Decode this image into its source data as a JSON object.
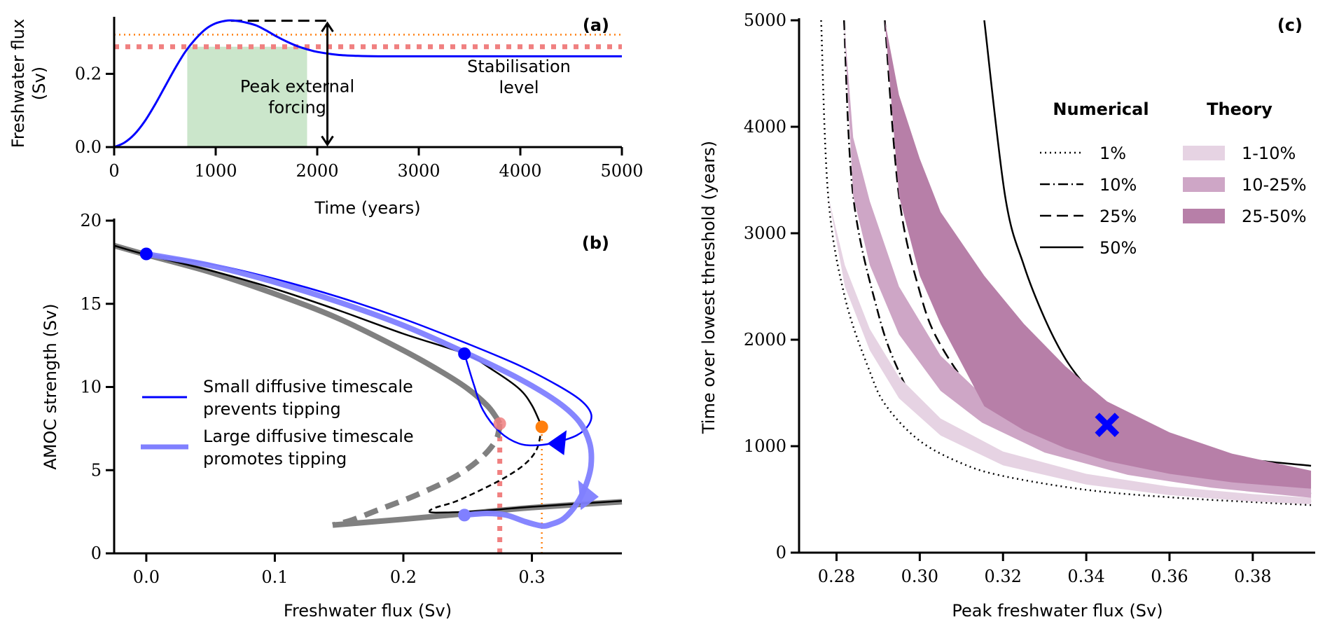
{
  "chart_data": [
    {
      "id": "a",
      "type": "line",
      "panel_label": "(a)",
      "xlabel": "Time (years)",
      "ylabel_lines": [
        "Freshwater flux",
        "(Sv)"
      ],
      "xlim": [
        0,
        5000
      ],
      "ylim": [
        0,
        0.35
      ],
      "xticks": [
        0,
        1000,
        2000,
        3000,
        4000,
        5000
      ],
      "xtick_labels": [
        "0",
        "1000",
        "2000",
        "3000",
        "4000",
        "5000"
      ],
      "yticks": [
        0.0,
        0.2
      ],
      "ytick_labels": [
        "0.0",
        "0.2"
      ],
      "grid": false,
      "series": [
        {
          "name": "freshwater forcing",
          "color": "#0000ff",
          "x": [
            0,
            100,
            200,
            300,
            400,
            500,
            600,
            700,
            800,
            900,
            1000,
            1100,
            1150,
            1200,
            1300,
            1400,
            1500,
            1600,
            1700,
            1800,
            1900,
            2000,
            2200,
            2400,
            2600,
            3000,
            4000,
            5000
          ],
          "y": [
            0,
            0.012,
            0.035,
            0.07,
            0.115,
            0.165,
            0.215,
            0.26,
            0.295,
            0.322,
            0.338,
            0.345,
            0.346,
            0.345,
            0.34,
            0.332,
            0.318,
            0.302,
            0.288,
            0.276,
            0.267,
            0.26,
            0.252,
            0.249,
            0.248,
            0.248,
            0.248,
            0.248
          ]
        }
      ],
      "hlines": [
        {
          "name": "orange threshold",
          "y": 0.307,
          "color": "#ff7f0e",
          "style": "dotted"
        },
        {
          "name": "red threshold",
          "y": 0.274,
          "color": "#f08080",
          "style": "thick-dotted"
        },
        {
          "name": "peak level",
          "y": 0.345,
          "x_from": 1150,
          "x_to": 2100,
          "color": "#000000",
          "style": "dashed"
        },
        {
          "name": "zero level",
          "y": 0.0,
          "x_from": 0,
          "x_to": 2100,
          "color": "#000000",
          "style": "dashed"
        }
      ],
      "shaded_region": {
        "x_from": 720,
        "x_to": 1900,
        "y_from": 0,
        "y_to": 0.274,
        "color": "#cbe6cb"
      },
      "arrow": {
        "x": 2100,
        "y_from": 0.003,
        "y_to": 0.342
      },
      "annotations": [
        {
          "text_lines": [
            "Peak external",
            "forcing"
          ],
          "x": 2700,
          "y": 0.15
        },
        {
          "text_lines": [
            "Stabilisation",
            "level"
          ],
          "x": 4400,
          "y": 0.205
        }
      ]
    },
    {
      "id": "b",
      "type": "line",
      "panel_label": "(b)",
      "xlabel": "Freshwater flux (Sv)",
      "ylabel": "AMOC strength (Sv)",
      "xlim": [
        -0.025,
        0.37
      ],
      "ylim": [
        0,
        20
      ],
      "xticks": [
        0.0,
        0.1,
        0.2,
        0.3
      ],
      "xtick_labels": [
        "0.0",
        "0.1",
        "0.2",
        "0.3"
      ],
      "yticks": [
        0,
        5,
        10,
        15,
        20
      ],
      "ytick_labels": [
        "0",
        "5",
        "10",
        "15",
        "20"
      ],
      "grid": false,
      "legend": {
        "position": "center-left",
        "entries": [
          {
            "label_lines": [
              "Small diffusive timescale",
              "prevents tipping"
            ],
            "color": "#0000ff",
            "style": "thin"
          },
          {
            "label_lines": [
              "Large diffusive timescale",
              "promotes tipping"
            ],
            "color": "#8080ff",
            "style": "thick"
          }
        ]
      },
      "series": [
        {
          "name": "equilibrium (large timescale) stable upper",
          "color": "#808080",
          "style": "thick-solid",
          "x": [
            -0.025,
            0.0,
            0.05,
            0.1,
            0.15,
            0.2,
            0.23,
            0.25,
            0.265,
            0.272,
            0.275
          ],
          "y": [
            18.5,
            17.95,
            16.9,
            15.6,
            14.1,
            12.2,
            10.9,
            9.9,
            8.9,
            8.2,
            7.8
          ]
        },
        {
          "name": "equilibrium (large timescale) unstable",
          "color": "#808080",
          "style": "thick-dashed",
          "x": [
            0.275,
            0.272,
            0.26,
            0.24,
            0.21,
            0.18,
            0.16,
            0.145
          ],
          "y": [
            7.8,
            6.8,
            5.7,
            4.6,
            3.5,
            2.6,
            2.0,
            1.7
          ]
        },
        {
          "name": "equilibrium (large timescale) stable lower",
          "color": "#808080",
          "style": "thick-solid",
          "x": [
            0.145,
            0.2,
            0.25,
            0.3,
            0.37
          ],
          "y": [
            1.7,
            2.05,
            2.4,
            2.75,
            3.1
          ]
        },
        {
          "name": "equilibrium (small timescale) stable upper",
          "color": "#000000",
          "style": "thin-solid",
          "x": [
            -0.025,
            0.0,
            0.05,
            0.1,
            0.15,
            0.2,
            0.2475,
            0.27,
            0.29,
            0.3,
            0.3077
          ],
          "y": [
            18.5,
            17.95,
            17.0,
            15.9,
            14.6,
            13.2,
            12.0,
            11.0,
            9.9,
            8.9,
            7.6
          ]
        },
        {
          "name": "equilibrium (small timescale) unstable",
          "color": "#000000",
          "style": "thin-dashed",
          "x": [
            0.3077,
            0.304,
            0.295,
            0.28,
            0.26,
            0.24,
            0.225,
            0.22
          ],
          "y": [
            7.6,
            6.3,
            5.4,
            4.6,
            3.8,
            3.1,
            2.75,
            2.55
          ]
        },
        {
          "name": "equilibrium (small timescale) stable lower",
          "color": "#000000",
          "style": "thin-solid",
          "x": [
            0.22,
            0.225,
            0.26,
            0.3,
            0.37
          ],
          "y": [
            2.55,
            2.45,
            2.55,
            2.8,
            3.15
          ]
        },
        {
          "name": "small diffusive timescale trajectory",
          "color": "#0000ff",
          "style": "thin-solid",
          "x": [
            0.0,
            0.05,
            0.1,
            0.15,
            0.2,
            0.25,
            0.29,
            0.32,
            0.338,
            0.346,
            0.344,
            0.335,
            0.32,
            0.305,
            0.29,
            0.275,
            0.262,
            0.255,
            0.2475
          ],
          "y": [
            18.0,
            17.4,
            16.5,
            15.4,
            14.1,
            12.6,
            11.3,
            10.1,
            9.2,
            8.4,
            7.7,
            7.1,
            6.7,
            6.5,
            6.6,
            7.3,
            8.6,
            10.1,
            12.0
          ]
        },
        {
          "name": "large diffusive timescale trajectory",
          "color": "#8080ff",
          "style": "thick-solid",
          "x": [
            0.0,
            0.05,
            0.1,
            0.15,
            0.2,
            0.25,
            0.29,
            0.32,
            0.337,
            0.345,
            0.346,
            0.342,
            0.335,
            0.325,
            0.315,
            0.3077,
            0.295,
            0.28,
            0.265,
            0.2475
          ],
          "y": [
            18.0,
            17.3,
            16.3,
            15.1,
            13.7,
            12.0,
            10.5,
            9.1,
            7.9,
            6.6,
            5.3,
            4.1,
            3.0,
            2.1,
            1.75,
            1.65,
            1.9,
            2.3,
            2.4,
            2.3
          ]
        }
      ],
      "markers": [
        {
          "name": "start",
          "x": 0.0,
          "y": 18.0,
          "color": "#0000ff"
        },
        {
          "name": "small-timescale end",
          "x": 0.2475,
          "y": 12.0,
          "color": "#0000ff"
        },
        {
          "name": "large-timescale end",
          "x": 0.2475,
          "y": 2.3,
          "color": "#8080ff"
        },
        {
          "name": "large-timescale tipping point",
          "x": 0.275,
          "y": 7.8,
          "color": "#f08080"
        },
        {
          "name": "small-timescale tipping point",
          "x": 0.3077,
          "y": 7.6,
          "color": "#ff7f0e"
        }
      ],
      "vlines": [
        {
          "name": "red threshold",
          "x": 0.275,
          "y_to": 7.8,
          "color": "#f08080",
          "style": "thick-dotted"
        },
        {
          "name": "orange threshold",
          "x": 0.3077,
          "y_to": 7.6,
          "color": "#ff7f0e",
          "style": "dotted"
        }
      ]
    },
    {
      "id": "c",
      "type": "line",
      "panel_label": "(c)",
      "xlabel": "Peak freshwater flux (Sv)",
      "ylabel": "Time over lowest threshold (years)",
      "xlim": [
        0.271,
        0.395
      ],
      "ylim": [
        0,
        5000
      ],
      "xticks": [
        0.28,
        0.3,
        0.32,
        0.34,
        0.36,
        0.38
      ],
      "xtick_labels": [
        "0.28",
        "0.30",
        "0.32",
        "0.34",
        "0.36",
        "0.38"
      ],
      "yticks": [
        0,
        1000,
        2000,
        3000,
        4000,
        5000
      ],
      "ytick_labels": [
        "0",
        "1000",
        "2000",
        "3000",
        "4000",
        "5000"
      ],
      "grid": false,
      "legend": {
        "position": "upper-right",
        "numerical_title": "Numerical",
        "theory_title": "Theory",
        "numerical": [
          {
            "label": "1%",
            "style": "dotted"
          },
          {
            "label": "10%",
            "style": "dashdot"
          },
          {
            "label": "25%",
            "style": "dashed"
          },
          {
            "label": "50%",
            "style": "solid"
          }
        ],
        "theory": [
          {
            "label": "1-10%",
            "color": "#e6d3e3"
          },
          {
            "label": "10-25%",
            "color": "#cea6c6"
          },
          {
            "label": "25-50%",
            "color": "#b77fa8"
          }
        ]
      },
      "theory_bands": [
        {
          "name": "1-10%",
          "color": "#e6d3e3",
          "x": [
            0.2763,
            0.278,
            0.282,
            0.288,
            0.295,
            0.305,
            0.32,
            0.34,
            0.36,
            0.38,
            0.394
          ],
          "lower": [
            5000,
            3350,
            2500,
            1900,
            1450,
            1100,
            820,
            640,
            540,
            480,
            455
          ],
          "upper": [
            5000,
            3350,
            2700,
            2100,
            1650,
            1260,
            950,
            740,
            620,
            550,
            515
          ]
        },
        {
          "name": "10-25%",
          "color": "#cea6c6",
          "x": [
            0.2818,
            0.284,
            0.288,
            0.295,
            0.305,
            0.315,
            0.33,
            0.35,
            0.37,
            0.394
          ],
          "lower": [
            5000,
            3350,
            2700,
            2050,
            1520,
            1220,
            940,
            730,
            610,
            515
          ],
          "upper": [
            5000,
            3900,
            3300,
            2500,
            1850,
            1480,
            1120,
            860,
            710,
            600
          ]
        },
        {
          "name": "25-50%",
          "color": "#b77fa8",
          "x": [
            0.2916,
            0.295,
            0.3,
            0.305,
            0.3155,
            0.325,
            0.335,
            0.345,
            0.36,
            0.375,
            0.394
          ],
          "lower": [
            5000,
            3350,
            2600,
            2150,
            1375,
            1150,
            980,
            860,
            740,
            660,
            600
          ],
          "upper": [
            5000,
            4300,
            3700,
            3200,
            2600,
            2150,
            1750,
            1420,
            1130,
            930,
            770
          ]
        }
      ],
      "series": [
        {
          "name": "1%",
          "style": "dotted",
          "x": [
            0.2763,
            0.278,
            0.282,
            0.288,
            0.292,
            0.3,
            0.31,
            0.32,
            0.34,
            0.36,
            0.38,
            0.394
          ],
          "y": [
            5000,
            3350,
            2400,
            1700,
            1375,
            1050,
            840,
            720,
            590,
            520,
            475,
            447
          ]
        },
        {
          "name": "10%",
          "style": "dashdot",
          "x": [
            0.2818,
            0.284,
            0.29,
            0.295,
            0.3,
            0.31,
            0.32,
            0.34,
            0.36,
            0.38,
            0.394
          ],
          "y": [
            5000,
            3350,
            2250,
            1700,
            1375,
            1050,
            870,
            680,
            580,
            520,
            480
          ]
        },
        {
          "name": "25%",
          "style": "dashed",
          "x": [
            0.2916,
            0.295,
            0.3,
            0.305,
            0.3155,
            0.325,
            0.335,
            0.345,
            0.36,
            0.38,
            0.394
          ],
          "y": [
            5000,
            3350,
            2450,
            1950,
            1375,
            1120,
            960,
            840,
            720,
            610,
            553
          ]
        },
        {
          "name": "50%",
          "style": "solid",
          "x": [
            0.3155,
            0.3205,
            0.325,
            0.33,
            0.335,
            0.34,
            0.345,
            0.35,
            0.36,
            0.37,
            0.38,
            0.394
          ],
          "y": [
            5000,
            3350,
            2700,
            2200,
            1820,
            1560,
            1370,
            1230,
            1040,
            930,
            870,
            816
          ]
        }
      ],
      "markers": [
        {
          "name": "model example",
          "x": 0.345,
          "y": 1200,
          "color": "#0000ff",
          "shape": "X"
        }
      ]
    }
  ]
}
